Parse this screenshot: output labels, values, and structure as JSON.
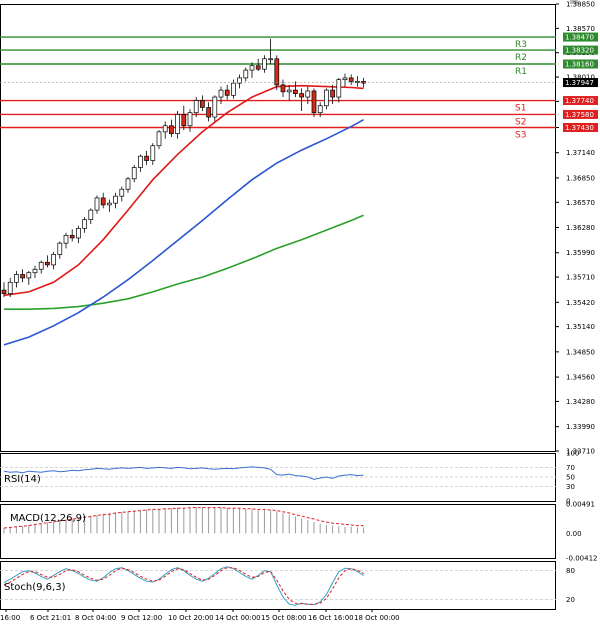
{
  "chart_data": [
    {
      "type": "candlestick",
      "panel": "main",
      "ylim": [
        1.3371,
        1.3885
      ],
      "price_ticks": [
        "1.38850",
        "1.38570",
        "1.38290",
        "1.38010",
        "1.37730",
        "1.37430",
        "1.37140",
        "1.36850",
        "1.36570",
        "1.36280",
        "1.35990",
        "1.35710",
        "1.35420",
        "1.35140",
        "1.34850",
        "1.34560",
        "1.34280",
        "1.33990",
        "1.33710"
      ],
      "current_price": "1.37947",
      "levels": [
        {
          "name": "R3",
          "label": "1.38470",
          "value": 1.3847,
          "color": "#2e8b2e"
        },
        {
          "name": "R2",
          "label": "1.38320",
          "value": 1.3832,
          "color": "#2e8b2e"
        },
        {
          "name": "R1",
          "label": "1.38160",
          "value": 1.3816,
          "color": "#2e8b2e"
        },
        {
          "name": "S1",
          "label": "1.37740",
          "value": 1.3774,
          "color": "#e02020"
        },
        {
          "name": "S2",
          "label": "1.37580",
          "value": 1.3758,
          "color": "#e02020"
        },
        {
          "name": "S3",
          "label": "1.37430",
          "value": 1.3743,
          "color": "#e02020"
        }
      ],
      "candles": [
        [
          1.3556,
          1.3565,
          1.3548,
          1.3552
        ],
        [
          1.3552,
          1.357,
          1.3548,
          1.3565
        ],
        [
          1.3565,
          1.3578,
          1.3559,
          1.3574
        ],
        [
          1.3574,
          1.358,
          1.3565,
          1.357
        ],
        [
          1.357,
          1.3578,
          1.3562,
          1.3576
        ],
        [
          1.3576,
          1.3584,
          1.357,
          1.358
        ],
        [
          1.358,
          1.359,
          1.3575,
          1.3588
        ],
        [
          1.3588,
          1.3596,
          1.3582,
          1.3585
        ],
        [
          1.3585,
          1.36,
          1.358,
          1.3597
        ],
        [
          1.3597,
          1.3612,
          1.3592,
          1.361
        ],
        [
          1.361,
          1.3622,
          1.3604,
          1.3619
        ],
        [
          1.3619,
          1.3626,
          1.3612,
          1.3616
        ],
        [
          1.3616,
          1.363,
          1.361,
          1.3627
        ],
        [
          1.3627,
          1.364,
          1.3622,
          1.3637
        ],
        [
          1.3637,
          1.365,
          1.3632,
          1.3648
        ],
        [
          1.3648,
          1.3665,
          1.3644,
          1.3662
        ],
        [
          1.3662,
          1.3668,
          1.365,
          1.3654
        ],
        [
          1.3654,
          1.366,
          1.3646,
          1.3656
        ],
        [
          1.3656,
          1.3668,
          1.365,
          1.3664
        ],
        [
          1.3664,
          1.3675,
          1.3658,
          1.3672
        ],
        [
          1.3672,
          1.3686,
          1.3668,
          1.3684
        ],
        [
          1.3684,
          1.37,
          1.368,
          1.3697
        ],
        [
          1.3697,
          1.3712,
          1.3692,
          1.371
        ],
        [
          1.371,
          1.3716,
          1.37,
          1.3705
        ],
        [
          1.3705,
          1.3725,
          1.37,
          1.3722
        ],
        [
          1.3722,
          1.374,
          1.3718,
          1.3738
        ],
        [
          1.3738,
          1.375,
          1.373,
          1.3745
        ],
        [
          1.3745,
          1.3752,
          1.3732,
          1.3736
        ],
        [
          1.3736,
          1.3762,
          1.373,
          1.3758
        ],
        [
          1.3758,
          1.3768,
          1.374,
          1.3745
        ],
        [
          1.3745,
          1.3764,
          1.3738,
          1.376
        ],
        [
          1.376,
          1.3778,
          1.3755,
          1.3774
        ],
        [
          1.3774,
          1.378,
          1.3762,
          1.3766
        ],
        [
          1.3766,
          1.3772,
          1.375,
          1.3755
        ],
        [
          1.3755,
          1.378,
          1.375,
          1.3778
        ],
        [
          1.3778,
          1.379,
          1.377,
          1.3786
        ],
        [
          1.3786,
          1.3792,
          1.3775,
          1.378
        ],
        [
          1.378,
          1.3798,
          1.3776,
          1.3794
        ],
        [
          1.3794,
          1.3804,
          1.3788,
          1.38
        ],
        [
          1.38,
          1.3812,
          1.3796,
          1.3809
        ],
        [
          1.3809,
          1.3818,
          1.38,
          1.3814
        ],
        [
          1.3814,
          1.3822,
          1.3808,
          1.381
        ],
        [
          1.381,
          1.3826,
          1.3806,
          1.3822
        ],
        [
          1.3822,
          1.3845,
          1.3816,
          1.3822
        ],
        [
          1.3822,
          1.3826,
          1.3786,
          1.3792
        ],
        [
          1.3792,
          1.3798,
          1.3778,
          1.3784
        ],
        [
          1.3784,
          1.3792,
          1.3774,
          1.3786
        ],
        [
          1.3786,
          1.3796,
          1.3778,
          1.3782
        ],
        [
          1.3782,
          1.3788,
          1.3762,
          1.3778
        ],
        [
          1.3778,
          1.379,
          1.377,
          1.3785
        ],
        [
          1.3785,
          1.3788,
          1.3755,
          1.376
        ],
        [
          1.376,
          1.3772,
          1.3755,
          1.3768
        ],
        [
          1.3768,
          1.3788,
          1.3764,
          1.3786
        ],
        [
          1.3786,
          1.3792,
          1.377,
          1.3778
        ],
        [
          1.3778,
          1.38,
          1.3772,
          1.3798
        ],
        [
          1.3798,
          1.3805,
          1.379,
          1.38
        ],
        [
          1.38,
          1.3804,
          1.3792,
          1.3796
        ],
        [
          1.3796,
          1.3802,
          1.379,
          1.3796
        ],
        [
          1.3796,
          1.38,
          1.3789,
          1.3794
        ]
      ],
      "ma_red": [
        [
          0,
          1.355
        ],
        [
          4,
          1.3554
        ],
        [
          8,
          1.3565
        ],
        [
          12,
          1.3585
        ],
        [
          16,
          1.3614
        ],
        [
          20,
          1.3648
        ],
        [
          24,
          1.3683
        ],
        [
          28,
          1.3712
        ],
        [
          32,
          1.3738
        ],
        [
          36,
          1.376
        ],
        [
          40,
          1.3778
        ],
        [
          44,
          1.379
        ],
        [
          48,
          1.3791
        ],
        [
          52,
          1.379
        ],
        [
          56,
          1.3789
        ],
        [
          58,
          1.3788
        ]
      ],
      "ma_blue": [
        [
          0,
          1.3493
        ],
        [
          4,
          1.3502
        ],
        [
          8,
          1.3515
        ],
        [
          12,
          1.353
        ],
        [
          16,
          1.3548
        ],
        [
          20,
          1.3568
        ],
        [
          24,
          1.359
        ],
        [
          28,
          1.3613
        ],
        [
          32,
          1.3636
        ],
        [
          36,
          1.366
        ],
        [
          40,
          1.3683
        ],
        [
          44,
          1.3702
        ],
        [
          48,
          1.3717
        ],
        [
          52,
          1.373
        ],
        [
          56,
          1.3744
        ],
        [
          58,
          1.3752
        ]
      ],
      "ma_green": [
        [
          0,
          1.3534
        ],
        [
          4,
          1.3534
        ],
        [
          8,
          1.3535
        ],
        [
          12,
          1.3537
        ],
        [
          16,
          1.3541
        ],
        [
          20,
          1.3546
        ],
        [
          24,
          1.3554
        ],
        [
          28,
          1.3563
        ],
        [
          32,
          1.3571
        ],
        [
          36,
          1.3581
        ],
        [
          40,
          1.3592
        ],
        [
          44,
          1.3604
        ],
        [
          48,
          1.3614
        ],
        [
          52,
          1.3625
        ],
        [
          56,
          1.3636
        ],
        [
          58,
          1.3642
        ]
      ]
    },
    {
      "type": "line",
      "panel": "rsi",
      "title": "RSI(14)",
      "ylim": [
        0,
        100
      ],
      "ticks": [
        "100",
        "70",
        "50",
        "30",
        "0"
      ],
      "values": [
        62,
        60,
        61,
        59,
        62,
        61,
        60,
        62,
        63,
        61,
        62,
        64,
        63,
        65,
        66,
        68,
        67,
        66,
        68,
        69,
        68,
        69,
        70,
        68,
        69,
        70,
        69,
        68,
        70,
        69,
        67,
        68,
        69,
        67,
        66,
        67,
        68,
        67,
        69,
        70,
        71,
        70,
        69,
        66,
        55,
        54,
        56,
        53,
        52,
        50,
        45,
        48,
        50,
        47,
        52,
        54,
        55,
        53,
        54
      ]
    },
    {
      "type": "histogram+line",
      "panel": "macd",
      "title": "MACD(12,26,9)",
      "ylim": [
        -0.00412,
        0.00491
      ],
      "ticks": [
        "0.00491",
        "0.00",
        "-0.00412"
      ],
      "histogram": [
        0.0009,
        0.001,
        0.0011,
        0.0012,
        0.0014,
        0.0015,
        0.0017,
        0.0018,
        0.002,
        0.0022,
        0.0023,
        0.0025,
        0.0026,
        0.0028,
        0.003,
        0.0031,
        0.0033,
        0.0034,
        0.0035,
        0.0036,
        0.0037,
        0.0038,
        0.0039,
        0.004,
        0.0041,
        0.0041,
        0.0042,
        0.0042,
        0.0043,
        0.0043,
        0.0043,
        0.0044,
        0.0044,
        0.0044,
        0.0043,
        0.0043,
        0.0043,
        0.0042,
        0.0042,
        0.0041,
        0.0041,
        0.004,
        0.004,
        0.0039,
        0.0037,
        0.0034,
        0.0031,
        0.0028,
        0.0025,
        0.0022,
        0.0019,
        0.0016,
        0.0014,
        0.0013,
        0.0012,
        0.0011,
        0.0011,
        0.001,
        0.001
      ],
      "signal": [
        0.0009,
        0.001,
        0.0011,
        0.0012,
        0.0013,
        0.0015,
        0.0016,
        0.0018,
        0.0019,
        0.0021,
        0.0022,
        0.0024,
        0.0025,
        0.0027,
        0.0028,
        0.003,
        0.0031,
        0.0032,
        0.0034,
        0.0035,
        0.0036,
        0.0037,
        0.0038,
        0.0039,
        0.004,
        0.004,
        0.0041,
        0.0041,
        0.0042,
        0.0042,
        0.0043,
        0.0043,
        0.0043,
        0.0043,
        0.0043,
        0.0043,
        0.0042,
        0.0042,
        0.0042,
        0.0041,
        0.0041,
        0.004,
        0.004,
        0.0039,
        0.0038,
        0.0036,
        0.0034,
        0.0031,
        0.0029,
        0.0026,
        0.0024,
        0.0021,
        0.0019,
        0.0017,
        0.0016,
        0.0015,
        0.0014,
        0.0013,
        0.0013
      ]
    },
    {
      "type": "line",
      "panel": "stoch",
      "title": "Stoch(9,6,3)",
      "ylim": [
        0,
        100
      ],
      "ticks": [
        "80",
        "20"
      ],
      "k": [
        55,
        62,
        70,
        78,
        80,
        75,
        68,
        62,
        70,
        78,
        84,
        80,
        74,
        66,
        60,
        58,
        65,
        76,
        84,
        86,
        80,
        72,
        64,
        58,
        56,
        62,
        72,
        82,
        86,
        80,
        70,
        62,
        58,
        64,
        74,
        84,
        88,
        84,
        76,
        68,
        62,
        70,
        80,
        78,
        50,
        25,
        10,
        8,
        12,
        10,
        9,
        15,
        30,
        55,
        78,
        85,
        84,
        78,
        70
      ],
      "d": [
        50,
        56,
        64,
        72,
        78,
        78,
        72,
        66,
        66,
        72,
        80,
        82,
        78,
        70,
        64,
        60,
        62,
        70,
        80,
        85,
        82,
        76,
        68,
        62,
        58,
        60,
        68,
        78,
        84,
        82,
        74,
        66,
        60,
        62,
        70,
        80,
        86,
        86,
        80,
        72,
        66,
        68,
        76,
        78,
        60,
        38,
        20,
        12,
        11,
        10,
        10,
        12,
        22,
        42,
        65,
        80,
        84,
        81,
        74
      ],
      "levels": [
        80,
        20
      ]
    }
  ],
  "x_labels": [
    "16:00",
    "6 Oct 21:01",
    "8 Oct 04:00",
    "9 Oct 12:00",
    "10 Oct 20:00",
    "14 Oct 00:00",
    "15 Oct 08:00",
    "16 Oct 16:00",
    "18 Oct 00:00"
  ],
  "colors": {
    "up": "#1f8f2a",
    "down": "#d42a1a",
    "ma_red": "#e01818",
    "ma_blue": "#2a55d0",
    "ma_green": "#2aa02a",
    "rsi": "#3b6fd4",
    "macd_hist": "#9a9a9a",
    "macd_signal": "#e02020",
    "stoch_k": "#3aa0c8",
    "stoch_d": "#e02020",
    "resistance": "#2e8b2e",
    "support": "#e02020",
    "price_tag": "#000000"
  }
}
